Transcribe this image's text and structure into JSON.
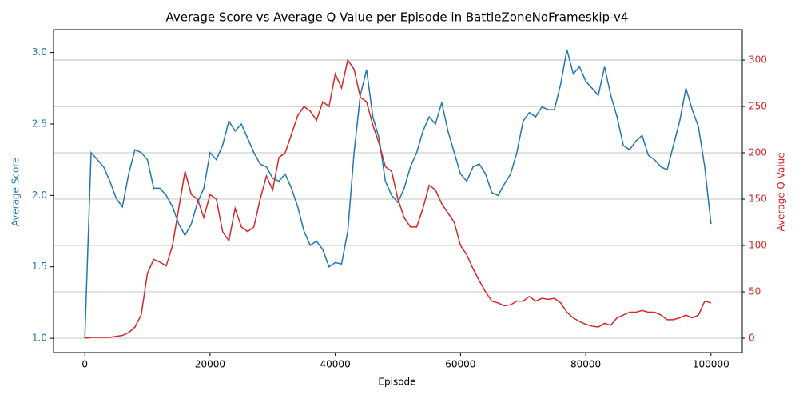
{
  "chart_data": {
    "type": "line",
    "title": "Average Score vs Average Q Value per Episode in BattleZoneNoFrameskip-v4",
    "xlabel": "Episode",
    "ylabel": "Average Score",
    "y2label": "Average Q Value",
    "x": [
      0,
      1000,
      2000,
      3000,
      4000,
      5000,
      6000,
      7000,
      8000,
      9000,
      10000,
      11000,
      12000,
      13000,
      14000,
      15000,
      16000,
      17000,
      18000,
      19000,
      20000,
      21000,
      22000,
      23000,
      24000,
      25000,
      26000,
      27000,
      28000,
      29000,
      30000,
      31000,
      32000,
      33000,
      34000,
      35000,
      36000,
      37000,
      38000,
      39000,
      40000,
      41000,
      42000,
      43000,
      44000,
      45000,
      46000,
      47000,
      48000,
      49000,
      50000,
      51000,
      52000,
      53000,
      54000,
      55000,
      56000,
      57000,
      58000,
      59000,
      60000,
      61000,
      62000,
      63000,
      64000,
      65000,
      66000,
      67000,
      68000,
      69000,
      70000,
      71000,
      72000,
      73000,
      74000,
      75000,
      76000,
      77000,
      78000,
      79000,
      80000,
      81000,
      82000,
      83000,
      84000,
      85000,
      86000,
      87000,
      88000,
      89000,
      90000,
      91000,
      92000,
      93000,
      94000,
      95000,
      96000,
      97000,
      98000,
      99000,
      100000
    ],
    "series": [
      {
        "name": "Average Score",
        "color": "#1f77b4",
        "axis": "y",
        "values": [
          1.0,
          2.3,
          2.25,
          2.2,
          2.1,
          1.98,
          1.92,
          2.15,
          2.32,
          2.3,
          2.25,
          2.05,
          2.05,
          2.0,
          1.92,
          1.8,
          1.72,
          1.8,
          1.95,
          2.05,
          2.3,
          2.25,
          2.35,
          2.52,
          2.45,
          2.5,
          2.4,
          2.3,
          2.22,
          2.2,
          2.12,
          2.1,
          2.15,
          2.05,
          1.92,
          1.75,
          1.65,
          1.68,
          1.62,
          1.5,
          1.53,
          1.52,
          1.75,
          2.3,
          2.7,
          2.88,
          2.55,
          2.4,
          2.1,
          2.0,
          1.95,
          2.05,
          2.2,
          2.3,
          2.45,
          2.55,
          2.5,
          2.65,
          2.45,
          2.3,
          2.15,
          2.1,
          2.2,
          2.22,
          2.15,
          2.02,
          2.0,
          2.08,
          2.15,
          2.3,
          2.52,
          2.58,
          2.55,
          2.62,
          2.6,
          2.6,
          2.78,
          3.02,
          2.85,
          2.9,
          2.8,
          2.75,
          2.7,
          2.9,
          2.7,
          2.55,
          2.35,
          2.32,
          2.38,
          2.42,
          2.28,
          2.25,
          2.2,
          2.18,
          2.35,
          2.52,
          2.75,
          2.6,
          2.48,
          2.2,
          1.8
        ]
      },
      {
        "name": "Average Q Value",
        "color": "#d62728",
        "axis": "y2",
        "values": [
          0,
          1,
          1,
          1,
          1,
          2,
          3,
          6,
          12,
          25,
          70,
          85,
          82,
          78,
          100,
          140,
          180,
          155,
          150,
          130,
          155,
          150,
          115,
          105,
          140,
          120,
          115,
          120,
          150,
          175,
          160,
          195,
          200,
          220,
          240,
          250,
          245,
          235,
          255,
          250,
          285,
          270,
          300,
          290,
          260,
          255,
          230,
          210,
          185,
          180,
          150,
          130,
          120,
          120,
          140,
          165,
          160,
          145,
          135,
          125,
          100,
          90,
          75,
          62,
          50,
          40,
          38,
          35,
          36,
          40,
          40,
          45,
          40,
          43,
          42,
          43,
          38,
          28,
          22,
          18,
          15,
          13,
          12,
          16,
          14,
          22,
          25,
          28,
          28,
          30,
          28,
          28,
          25,
          20,
          20,
          22,
          25,
          22,
          25,
          40,
          38
        ]
      }
    ],
    "xlim": [
      -5000,
      105000
    ],
    "xticks": [
      0,
      20000,
      40000,
      60000,
      80000,
      100000
    ],
    "ylim": [
      0.9,
      3.16
    ],
    "yticks": [
      {
        "value": 1,
        "label": "1.0"
      },
      1.5,
      {
        "value": 2,
        "label": "2.0"
      },
      2.5,
      {
        "value": 3,
        "label": "3.0"
      }
    ],
    "y2lim": [
      -15.5,
      332.8
    ],
    "y2ticks": [
      0,
      50,
      100,
      150,
      200,
      250,
      300
    ],
    "grid": true,
    "grid_axis": "y2"
  }
}
